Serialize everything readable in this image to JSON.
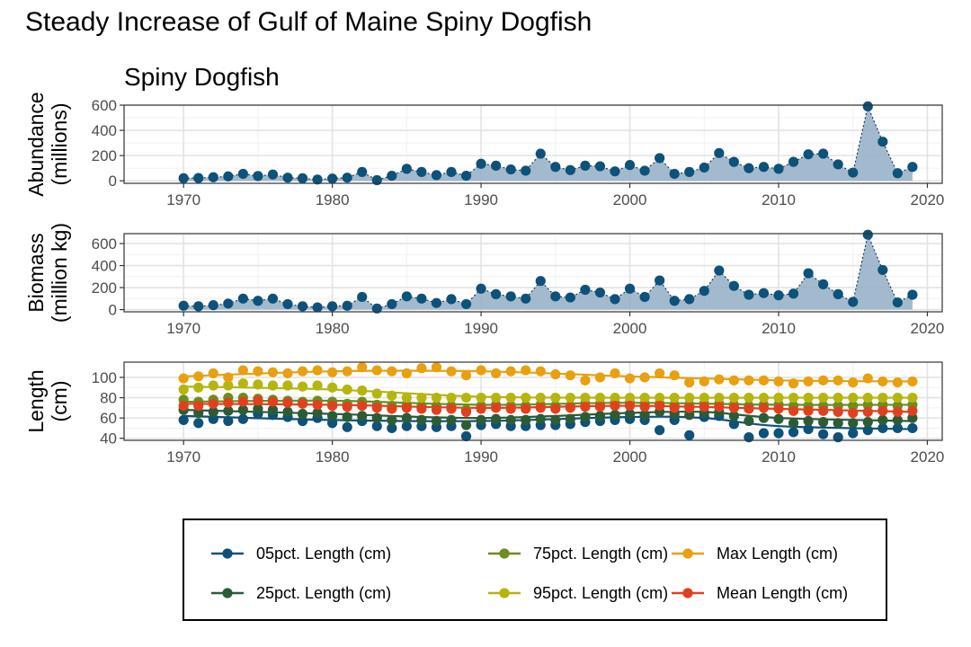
{
  "title": "Steady Increase of Gulf of Maine Spiny Dogfish",
  "chart_data": [
    {
      "type": "area",
      "title": "Spiny Dogfish",
      "ylabel": [
        "Abundance",
        "(millions)"
      ],
      "xlim": [
        1966,
        2021
      ],
      "ylim": [
        -20,
        600
      ],
      "xticks": [
        1970,
        1980,
        1990,
        2000,
        2010,
        2020
      ],
      "yticks": [
        0,
        200,
        400,
        600
      ],
      "grid": true,
      "color": "#0E5179",
      "fill": "#93AEC5",
      "x": [
        1970,
        1971,
        1972,
        1973,
        1974,
        1975,
        1976,
        1977,
        1978,
        1979,
        1980,
        1981,
        1982,
        1983,
        1984,
        1985,
        1986,
        1987,
        1988,
        1989,
        1990,
        1991,
        1992,
        1993,
        1994,
        1995,
        1996,
        1997,
        1998,
        1999,
        2000,
        2001,
        2002,
        2003,
        2004,
        2005,
        2006,
        2007,
        2008,
        2009,
        2010,
        2011,
        2012,
        2013,
        2014,
        2015,
        2016,
        2017,
        2018,
        2019
      ],
      "y": [
        20,
        22,
        28,
        35,
        55,
        38,
        50,
        25,
        20,
        10,
        18,
        25,
        70,
        5,
        40,
        95,
        70,
        45,
        70,
        40,
        135,
        120,
        90,
        80,
        215,
        110,
        85,
        120,
        115,
        75,
        125,
        80,
        180,
        55,
        70,
        105,
        220,
        150,
        100,
        110,
        95,
        150,
        210,
        215,
        130,
        65,
        590,
        310,
        60,
        110
      ]
    },
    {
      "type": "area",
      "ylabel": [
        "Biomass",
        "(million kg)"
      ],
      "xlim": [
        1966,
        2021
      ],
      "ylim": [
        -20,
        690
      ],
      "xticks": [
        1970,
        1980,
        1990,
        2000,
        2010,
        2020
      ],
      "yticks": [
        0,
        200,
        400,
        600
      ],
      "grid": true,
      "color": "#0E5179",
      "fill": "#93AEC5",
      "x": [
        1970,
        1971,
        1972,
        1973,
        1974,
        1975,
        1976,
        1977,
        1978,
        1979,
        1980,
        1981,
        1982,
        1983,
        1984,
        1985,
        1986,
        1987,
        1988,
        1989,
        1990,
        1991,
        1992,
        1993,
        1994,
        1995,
        1996,
        1997,
        1998,
        1999,
        2000,
        2001,
        2002,
        2003,
        2004,
        2005,
        2006,
        2007,
        2008,
        2009,
        2010,
        2011,
        2012,
        2013,
        2014,
        2015,
        2016,
        2017,
        2018,
        2019
      ],
      "y": [
        35,
        30,
        40,
        55,
        100,
        80,
        100,
        50,
        30,
        20,
        30,
        35,
        115,
        10,
        50,
        120,
        100,
        60,
        95,
        50,
        190,
        140,
        120,
        100,
        260,
        120,
        110,
        180,
        155,
        95,
        190,
        115,
        265,
        80,
        95,
        170,
        355,
        215,
        135,
        150,
        130,
        145,
        330,
        230,
        140,
        70,
        680,
        360,
        65,
        135
      ]
    },
    {
      "type": "scatter",
      "ylabel": [
        "Length",
        "(cm)"
      ],
      "xlim": [
        1966,
        2021
      ],
      "ylim": [
        38,
        115
      ],
      "xticks": [
        1970,
        1980,
        1990,
        2000,
        2010,
        2020
      ],
      "yticks": [
        40,
        60,
        80,
        100
      ],
      "grid": true,
      "legend": "bottom",
      "x": [
        1970,
        1971,
        1972,
        1973,
        1974,
        1975,
        1976,
        1977,
        1978,
        1979,
        1980,
        1981,
        1982,
        1983,
        1984,
        1985,
        1986,
        1987,
        1988,
        1989,
        1990,
        1991,
        1992,
        1993,
        1994,
        1995,
        1996,
        1997,
        1998,
        1999,
        2000,
        2001,
        2002,
        2003,
        2004,
        2005,
        2006,
        2007,
        2008,
        2009,
        2010,
        2011,
        2012,
        2013,
        2014,
        2015,
        2016,
        2017,
        2018,
        2019
      ],
      "series": [
        {
          "name": "05pct. Length (cm)",
          "color": "#0E5179",
          "values": [
            58,
            55,
            59,
            57,
            59,
            64,
            63,
            61,
            57,
            60,
            55,
            51,
            57,
            52,
            50,
            52,
            52,
            51,
            52,
            42,
            53,
            54,
            52,
            52,
            53,
            53,
            54,
            56,
            57,
            58,
            59,
            58,
            48,
            58,
            43,
            61,
            62,
            54,
            41,
            45,
            45,
            46,
            49,
            44,
            41,
            45,
            48,
            50,
            50,
            50
          ],
          "trend": [
            [
              1970,
              62
            ],
            [
              1980,
              58
            ],
            [
              1990,
              57
            ],
            [
              2000,
              61
            ],
            [
              2005,
              60
            ],
            [
              2010,
              52
            ],
            [
              2019,
              49
            ]
          ]
        },
        {
          "name": "25pct. Length (cm)",
          "color": "#2B5C36",
          "values": [
            68,
            65,
            66,
            67,
            68,
            69,
            68,
            66,
            64,
            65,
            62,
            61,
            62,
            60,
            58,
            60,
            58,
            57,
            58,
            53,
            58,
            59,
            58,
            58,
            59,
            58,
            59,
            61,
            62,
            63,
            64,
            63,
            66,
            64,
            63,
            65,
            66,
            62,
            57,
            60,
            59,
            55,
            57,
            56,
            55,
            55,
            56,
            58,
            58,
            60
          ],
          "trend": [
            [
              1970,
              68
            ],
            [
              1980,
              64
            ],
            [
              1990,
              60
            ],
            [
              2000,
              65
            ],
            [
              2005,
              66
            ],
            [
              2010,
              60
            ],
            [
              2019,
              57
            ]
          ]
        },
        {
          "name": "75pct. Length (cm)",
          "color": "#6B8E1F",
          "values": [
            78,
            76,
            78,
            80,
            80,
            79,
            78,
            77,
            76,
            77,
            76,
            74,
            76,
            73,
            72,
            73,
            72,
            72,
            72,
            68,
            72,
            73,
            72,
            72,
            73,
            72,
            72,
            74,
            74,
            75,
            75,
            74,
            74,
            73,
            73,
            74,
            74,
            73,
            72,
            73,
            73,
            72,
            72,
            72,
            72,
            72,
            73,
            73,
            72,
            73
          ],
          "trend": [
            [
              1970,
              76
            ],
            [
              1980,
              77
            ],
            [
              1990,
              73
            ],
            [
              2000,
              75
            ],
            [
              2010,
              73
            ],
            [
              2019,
              73
            ]
          ]
        },
        {
          "name": "95pct. Length (cm)",
          "color": "#B5B50F",
          "values": [
            88,
            90,
            92,
            92,
            94,
            93,
            92,
            92,
            91,
            92,
            90,
            88,
            87,
            84,
            82,
            80,
            80,
            80,
            80,
            80,
            80,
            80,
            80,
            80,
            80,
            80,
            80,
            80,
            80,
            80,
            80,
            80,
            80,
            80,
            80,
            80,
            80,
            80,
            80,
            80,
            80,
            80,
            80,
            80,
            80,
            80,
            80,
            80,
            80,
            80
          ],
          "trend": [
            [
              1970,
              91
            ],
            [
              1980,
              88
            ],
            [
              1990,
              81
            ],
            [
              2000,
              80
            ],
            [
              2010,
              80
            ],
            [
              2019,
              80
            ]
          ]
        },
        {
          "name": "Max Length (cm)",
          "color": "#E8A00F",
          "values": [
            99,
            101,
            104,
            100,
            107,
            106,
            105,
            104,
            106,
            107,
            105,
            106,
            110,
            107,
            106,
            104,
            109,
            110,
            106,
            102,
            107,
            104,
            106,
            107,
            106,
            103,
            102,
            97,
            100,
            104,
            99,
            100,
            104,
            102,
            95,
            96,
            98,
            97,
            97,
            97,
            96,
            94,
            96,
            97,
            97,
            95,
            99,
            96,
            95,
            96
          ],
          "trend": [
            [
              1970,
              101
            ],
            [
              1980,
              106
            ],
            [
              1990,
              106
            ],
            [
              2000,
              101
            ],
            [
              2010,
              97
            ],
            [
              2019,
              96
            ]
          ]
        },
        {
          "name": "Mean Length (cm)",
          "color": "#E1401E",
          "values": [
            72,
            72,
            74,
            75,
            76,
            77,
            76,
            75,
            74,
            73,
            72,
            71,
            72,
            70,
            69,
            70,
            69,
            68,
            69,
            66,
            69,
            70,
            69,
            69,
            70,
            69,
            70,
            71,
            71,
            72,
            72,
            71,
            72,
            70,
            70,
            71,
            71,
            70,
            69,
            70,
            69,
            67,
            67,
            67,
            66,
            65,
            66,
            67,
            66,
            67
          ],
          "trend": [
            [
              1970,
              74
            ],
            [
              1980,
              73
            ],
            [
              1990,
              70
            ],
            [
              2000,
              72
            ],
            [
              2010,
              69
            ],
            [
              2019,
              66
            ]
          ]
        }
      ]
    }
  ]
}
